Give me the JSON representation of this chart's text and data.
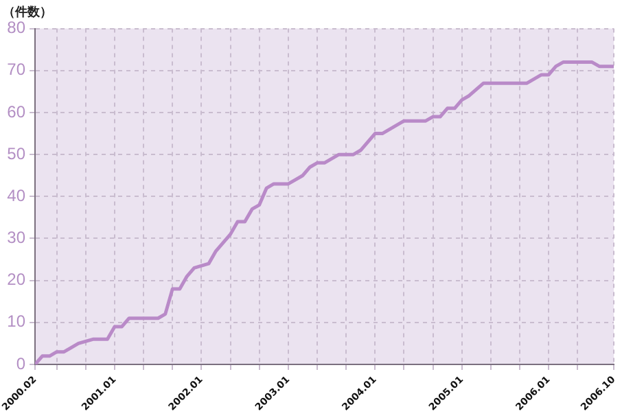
{
  "chart_data": {
    "type": "line",
    "ylabel": "（件数）",
    "x": [
      "2000-02",
      "2000-03",
      "2000-04",
      "2000-05",
      "2000-06",
      "2000-08",
      "2000-10",
      "2000-12",
      "2001-01",
      "2001-02",
      "2001-03",
      "2001-07",
      "2001-08",
      "2001-09",
      "2001-10",
      "2001-11",
      "2001-12",
      "2002-02",
      "2002-03",
      "2002-04",
      "2002-05",
      "2002-06",
      "2002-07",
      "2002-08",
      "2002-09",
      "2002-10",
      "2002-11",
      "2003-01",
      "2003-02",
      "2003-03",
      "2003-04",
      "2003-05",
      "2003-06",
      "2003-08",
      "2003-10",
      "2003-11",
      "2004-01",
      "2004-02",
      "2004-05",
      "2004-08",
      "2004-09",
      "2004-10",
      "2004-11",
      "2004-12",
      "2005-01",
      "2005-02",
      "2005-04",
      "2005-10",
      "2005-12",
      "2006-01",
      "2006-02",
      "2006-03",
      "2006-07",
      "2006-08",
      "2006-10"
    ],
    "series": [
      {
        "color": "#b98ac8",
        "values": [
          0,
          2,
          2,
          3,
          3,
          5,
          6,
          6,
          9,
          9,
          11,
          11,
          12,
          18,
          18,
          21,
          23,
          24,
          27,
          29,
          31,
          34,
          34,
          37,
          38,
          42,
          43,
          43,
          44,
          45,
          47,
          48,
          48,
          50,
          50,
          51,
          55,
          55,
          58,
          58,
          59,
          59,
          61,
          61,
          63,
          64,
          67,
          67,
          69,
          69,
          71,
          72,
          72,
          71,
          71
        ]
      }
    ],
    "xlim": [
      "2000-02",
      "2006-10"
    ],
    "xticks": [
      {
        "value": "2000-02",
        "label": "2000.02"
      },
      {
        "value": "2000-05",
        "label": null
      },
      {
        "value": "2000-09",
        "label": null
      },
      {
        "value": "2001-01",
        "label": "2001.01"
      },
      {
        "value": "2001-05",
        "label": null
      },
      {
        "value": "2001-09",
        "label": null
      },
      {
        "value": "2002-01",
        "label": "2002.01"
      },
      {
        "value": "2002-05",
        "label": null
      },
      {
        "value": "2002-09",
        "label": null
      },
      {
        "value": "2003-01",
        "label": "2003.01"
      },
      {
        "value": "2003-05",
        "label": null
      },
      {
        "value": "2003-09",
        "label": null
      },
      {
        "value": "2004-01",
        "label": "2004.01"
      },
      {
        "value": "2004-05",
        "label": null
      },
      {
        "value": "2004-09",
        "label": null
      },
      {
        "value": "2005-01",
        "label": "2005.01"
      },
      {
        "value": "2005-05",
        "label": null
      },
      {
        "value": "2005-09",
        "label": null
      },
      {
        "value": "2006-01",
        "label": "2006.01"
      },
      {
        "value": "2006-05",
        "label": null
      },
      {
        "value": "2006-10",
        "label": "2006.10"
      }
    ],
    "ylim": [
      0,
      80
    ],
    "yticks": [
      0,
      10,
      20,
      30,
      40,
      50,
      60,
      70,
      80
    ],
    "grid": true,
    "line_style": "solid"
  }
}
